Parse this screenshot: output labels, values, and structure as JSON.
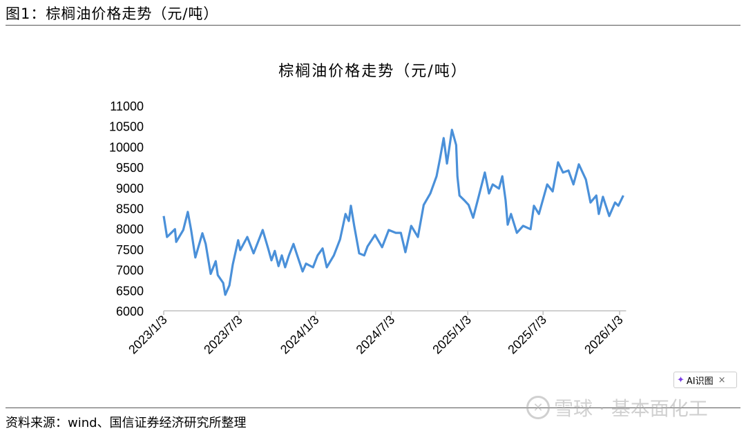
{
  "figure_title": "图1：棕榈油价格走势（元/吨）",
  "source": "资料来源：wind、国信证券经济研究所整理",
  "watermark": {
    "text": "雪球 · 基本面化工",
    "icon": "snowball-logo-icon"
  },
  "ai_popup": {
    "label": "AI识图",
    "icon": "sparkle-icon",
    "close": "×"
  },
  "colors": {
    "line": "#4A90D9",
    "axis": "#BFBFBF"
  },
  "chart_data": {
    "type": "line",
    "title": "棕榈油价格走势（元/吨）",
    "xlabel": "",
    "ylabel": "",
    "ylim": [
      6000,
      11000
    ],
    "yticks": [
      "6000",
      "6500",
      "7000",
      "7500",
      "8000",
      "8500",
      "9000",
      "9500",
      "10000",
      "10500",
      "11000"
    ],
    "xticks": [
      "2023/1/3",
      "2023/7/3",
      "2024/1/3",
      "2024/7/3",
      "2025/1/3",
      "2025/7/3",
      "2026/1/3"
    ],
    "grid": false,
    "legend": "none",
    "x": [
      "2023-01-03",
      "2023-01-11",
      "2023-01-30",
      "2023-02-02",
      "2023-02-19",
      "2023-03-02",
      "2023-03-10",
      "2023-03-20",
      "2023-04-06",
      "2023-04-14",
      "2023-04-26",
      "2023-05-08",
      "2023-05-13",
      "2023-05-26",
      "2023-05-31",
      "2023-06-10",
      "2023-06-18",
      "2023-07-01",
      "2023-07-06",
      "2023-07-23",
      "2023-08-07",
      "2023-08-29",
      "2023-09-11",
      "2023-09-19",
      "2023-09-27",
      "2023-10-06",
      "2023-10-14",
      "2023-10-22",
      "2023-10-31",
      "2023-11-11",
      "2023-11-20",
      "2023-12-03",
      "2023-12-11",
      "2023-12-28",
      "2024-01-08",
      "2024-01-20",
      "2024-01-30",
      "2024-02-16",
      "2024-03-02",
      "2024-03-15",
      "2024-03-23",
      "2024-03-28",
      "2024-04-05",
      "2024-04-17",
      "2024-04-29",
      "2024-05-07",
      "2024-05-25",
      "2024-06-11",
      "2024-06-27",
      "2024-07-14",
      "2024-07-26",
      "2024-08-06",
      "2024-08-20",
      "2024-09-05",
      "2024-09-19",
      "2024-10-05",
      "2024-10-20",
      "2024-10-28",
      "2024-11-06",
      "2024-11-14",
      "2024-11-26",
      "2024-12-06",
      "2024-12-09",
      "2024-12-14",
      "2024-12-26",
      "2025-01-05",
      "2025-01-16",
      "2025-01-28",
      "2025-02-13",
      "2025-02-23",
      "2025-03-04",
      "2025-03-19",
      "2025-03-27",
      "2025-04-04",
      "2025-04-09",
      "2025-04-17",
      "2025-05-01",
      "2025-05-16",
      "2025-06-03",
      "2025-06-11",
      "2025-06-23",
      "2025-07-13",
      "2025-07-26",
      "2025-08-08",
      "2025-08-20",
      "2025-09-02",
      "2025-09-14",
      "2025-09-27",
      "2025-10-14",
      "2025-10-25",
      "2025-11-08",
      "2025-11-14",
      "2025-11-24",
      "2025-12-09",
      "2025-12-23",
      "2025-12-31",
      "2026-01-12"
    ],
    "values": [
      8310,
      7800,
      7990,
      7680,
      7970,
      8410,
      7970,
      7300,
      7890,
      7630,
      6900,
      7210,
      6870,
      6680,
      6390,
      6620,
      7130,
      7720,
      7480,
      7800,
      7400,
      7970,
      7520,
      7230,
      7460,
      7090,
      7350,
      7060,
      7350,
      7630,
      7350,
      6960,
      7150,
      7060,
      7350,
      7520,
      7060,
      7350,
      7740,
      8360,
      8190,
      8560,
      8070,
      7400,
      7350,
      7570,
      7850,
      7550,
      7970,
      7900,
      7900,
      7430,
      8070,
      7800,
      8580,
      8860,
      9280,
      9700,
      10210,
      9590,
      10410,
      10040,
      9280,
      8810,
      8690,
      8580,
      8270,
      8740,
      9370,
      8860,
      9080,
      8980,
      9280,
      8690,
      8100,
      8360,
      7900,
      8070,
      7990,
      8560,
      8360,
      9080,
      8910,
      9620,
      9370,
      9420,
      9080,
      9570,
      9200,
      8640,
      8810,
      8360,
      8780,
      8310,
      8640,
      8560,
      8810
    ]
  }
}
